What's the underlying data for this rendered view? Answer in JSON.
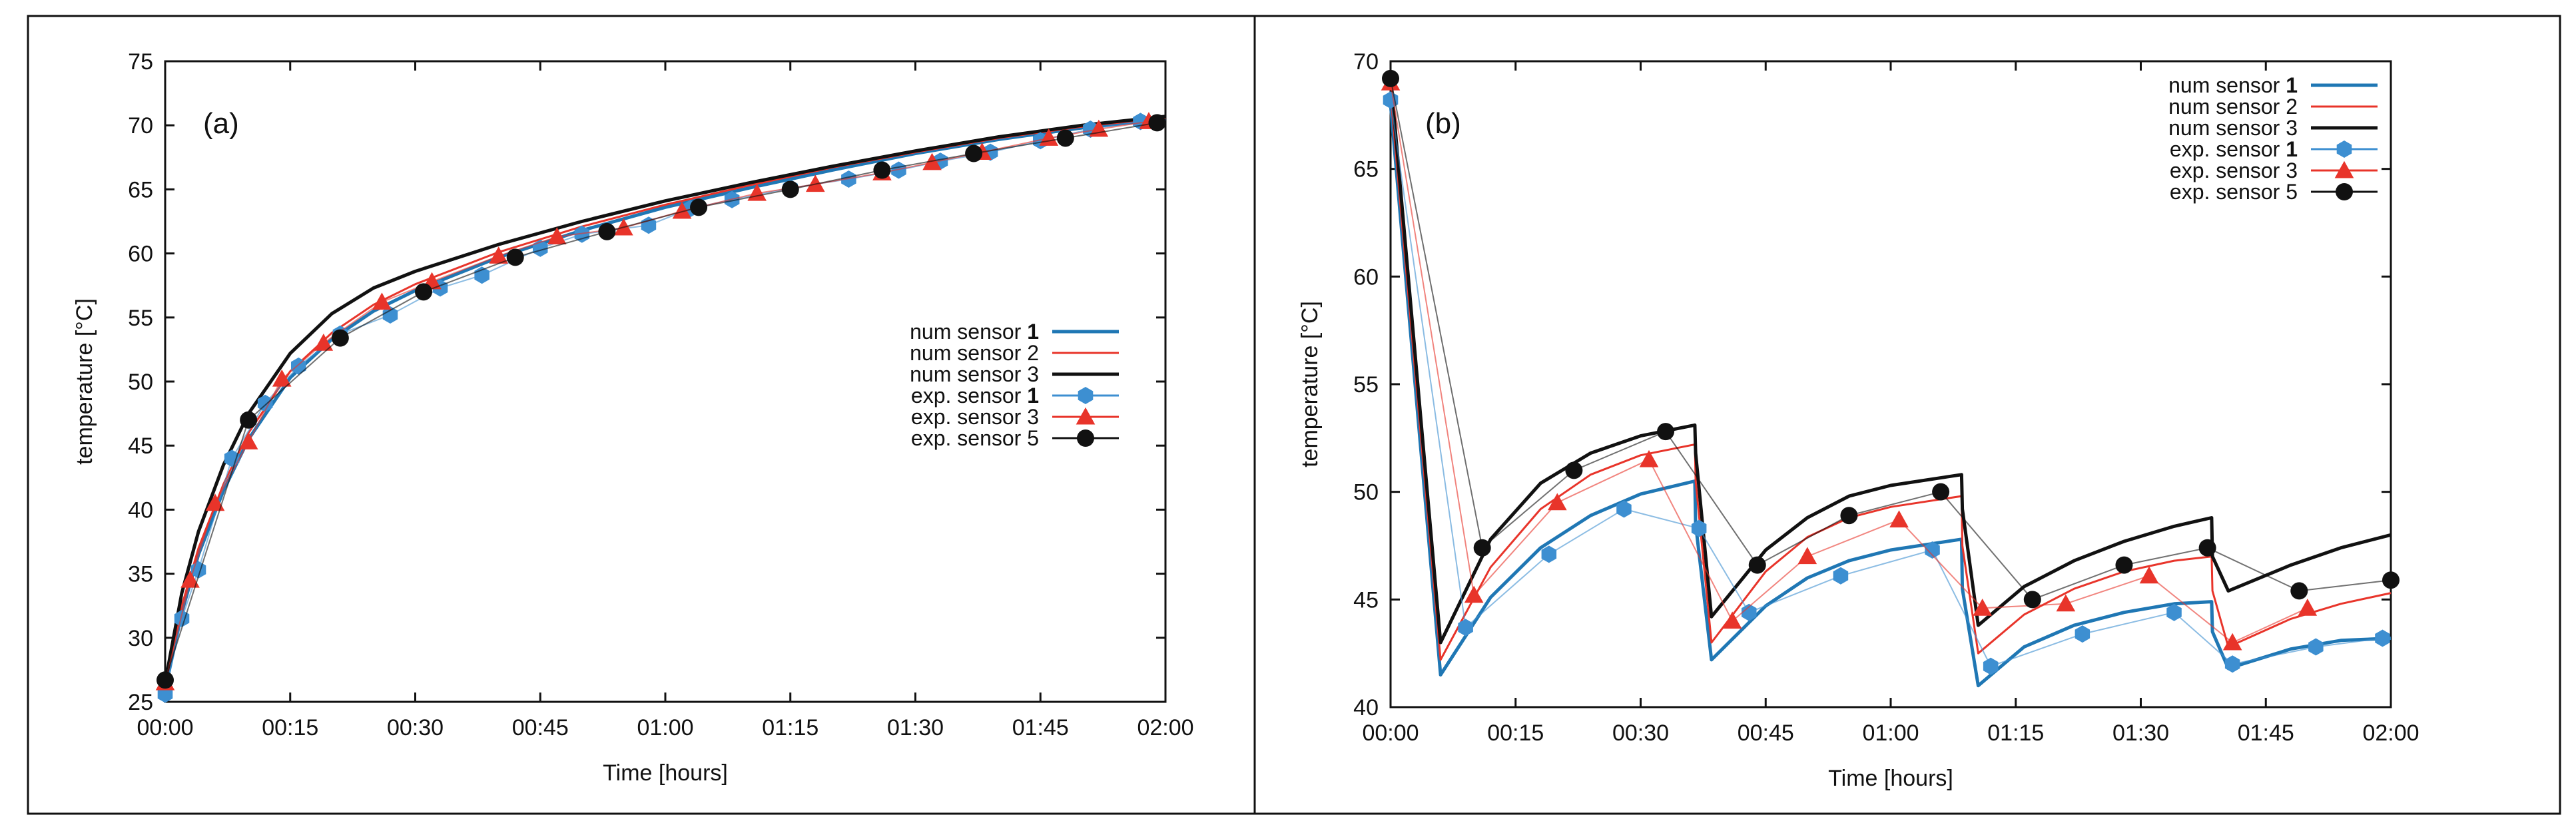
{
  "figure": {
    "panels": [
      "a",
      "b"
    ]
  },
  "chart_data": [
    {
      "type": "line",
      "panel_label": "(a)",
      "title": "",
      "xlabel": "Time [hours]",
      "ylabel": "temperature [°C]",
      "xlim": [
        0,
        120
      ],
      "ylim": [
        25,
        75
      ],
      "xticks": [
        0,
        15,
        30,
        45,
        60,
        75,
        90,
        105,
        120
      ],
      "xtick_labels": [
        "00:00",
        "00:15",
        "00:30",
        "00:45",
        "01:00",
        "01:15",
        "01:30",
        "01:45",
        "02:00"
      ],
      "yticks": [
        25,
        30,
        35,
        40,
        45,
        50,
        55,
        60,
        65,
        70,
        75
      ],
      "ytick_labels": [
        "25",
        "30",
        "35",
        "40",
        "45",
        "50",
        "55",
        "60",
        "65",
        "70",
        "75"
      ],
      "legend": {
        "position": "right"
      },
      "series": [
        {
          "name": "num sensor ",
          "name_bold": "1",
          "kind": "line",
          "color": "#1f77b4",
          "width": 5,
          "x": [
            0,
            2,
            4,
            7,
            10,
            15,
            20,
            25,
            30,
            40,
            50,
            60,
            70,
            80,
            90,
            100,
            110,
            120
          ],
          "y": [
            26,
            32,
            36.5,
            41.5,
            45.5,
            50.3,
            53.3,
            55.5,
            57.1,
            59.7,
            61.8,
            63.6,
            65.1,
            66.5,
            67.8,
            68.9,
            69.8,
            70.5
          ]
        },
        {
          "name": "num sensor 2",
          "name_bold": "",
          "kind": "line",
          "color": "#e8342a",
          "width": 3,
          "x": [
            0,
            2,
            4,
            7,
            10,
            15,
            20,
            25,
            30,
            40,
            50,
            60,
            70,
            80,
            90,
            100,
            110,
            120
          ],
          "y": [
            26.3,
            32.5,
            37,
            42,
            46,
            50.8,
            53.8,
            56,
            57.6,
            60.1,
            62.1,
            63.8,
            65.3,
            66.7,
            67.9,
            69,
            69.9,
            70.6
          ]
        },
        {
          "name": "num sensor 3",
          "name_bold": "",
          "kind": "line",
          "color": "#111111",
          "width": 5,
          "x": [
            0,
            2,
            4,
            7,
            10,
            15,
            20,
            25,
            30,
            40,
            50,
            60,
            70,
            80,
            90,
            100,
            110,
            120
          ],
          "y": [
            26.5,
            33.5,
            38.3,
            43.5,
            47.5,
            52.2,
            55.3,
            57.3,
            58.6,
            60.7,
            62.5,
            64.1,
            65.5,
            66.8,
            68,
            69.1,
            70,
            70.7
          ]
        },
        {
          "name": "exp. sensor ",
          "name_bold": "1",
          "kind": "marker",
          "marker": "hexagon",
          "color": "#3d8fd1",
          "x": [
            0,
            2,
            4,
            8,
            12,
            16,
            21,
            27,
            33,
            38,
            45,
            50,
            58,
            63,
            68,
            75,
            82,
            88,
            93,
            99,
            105,
            111,
            117
          ],
          "y": [
            25.6,
            31.5,
            35.3,
            44,
            48.3,
            51.2,
            53.7,
            55.2,
            57.3,
            58.3,
            60.4,
            61.5,
            62.2,
            63.5,
            64.2,
            65.1,
            65.8,
            66.5,
            67.2,
            67.9,
            68.8,
            69.7,
            70.3
          ]
        },
        {
          "name": "exp. sensor 3",
          "name_bold": "",
          "kind": "marker",
          "marker": "triangle",
          "color": "#e8342a",
          "x": [
            0,
            3,
            6,
            10,
            14,
            19,
            26,
            32,
            40,
            47,
            55,
            62,
            71,
            78,
            86,
            92,
            98,
            106,
            112,
            118
          ],
          "y": [
            26.5,
            34.5,
            40.5,
            45.3,
            50.2,
            53,
            56.2,
            57.8,
            59.8,
            61.3,
            62,
            63.3,
            64.7,
            65.4,
            66.3,
            67.1,
            67.9,
            69,
            69.7,
            70.3
          ]
        },
        {
          "name": "exp. sensor 5",
          "name_bold": "",
          "kind": "marker",
          "marker": "circle",
          "color": "#111111",
          "x": [
            0,
            10,
            21,
            31,
            42,
            53,
            64,
            75,
            86,
            97,
            108,
            119
          ],
          "y": [
            26.7,
            47,
            53.4,
            57,
            59.7,
            61.7,
            63.6,
            65,
            66.5,
            67.8,
            69,
            70.2
          ]
        }
      ]
    },
    {
      "type": "line",
      "panel_label": "(b)",
      "title": "",
      "xlabel": "Time [hours]",
      "ylabel": "temperature [°C]",
      "xlim": [
        0,
        120
      ],
      "ylim": [
        40,
        70
      ],
      "xticks": [
        0,
        15,
        30,
        45,
        60,
        75,
        90,
        105,
        120
      ],
      "xtick_labels": [
        "00:00",
        "00:15",
        "00:30",
        "00:45",
        "01:00",
        "01:15",
        "01:30",
        "01:45",
        "02:00"
      ],
      "yticks": [
        40,
        45,
        50,
        55,
        60,
        65,
        70
      ],
      "ytick_labels": [
        "40",
        "45",
        "50",
        "55",
        "60",
        "65",
        "70"
      ],
      "legend": {
        "position": "top-right"
      },
      "series": [
        {
          "name": "num sensor ",
          "name_bold": "1",
          "kind": "line",
          "color": "#1f77b4",
          "width": 5,
          "x": [
            0,
            6,
            12,
            18,
            24,
            30,
            36.5,
            36.6,
            38.5,
            45,
            50,
            55,
            60,
            68.5,
            68.6,
            70.5,
            76,
            82,
            88,
            94,
            98.5,
            98.6,
            100.5,
            108,
            114,
            120
          ],
          "y": [
            68,
            41.5,
            45.1,
            47.4,
            48.9,
            49.9,
            50.5,
            48.5,
            42.2,
            44.7,
            46,
            46.8,
            47.3,
            47.8,
            45.5,
            41,
            42.8,
            43.8,
            44.4,
            44.8,
            44.9,
            43.5,
            41.8,
            42.7,
            43.1,
            43.2
          ]
        },
        {
          "name": "num sensor 2",
          "name_bold": "",
          "kind": "line",
          "color": "#e8342a",
          "width": 3,
          "x": [
            0,
            6,
            12,
            18,
            24,
            30,
            36.5,
            36.6,
            38.5,
            45,
            50,
            55,
            60,
            68.5,
            68.6,
            70.5,
            76,
            82,
            88,
            94,
            98.5,
            98.6,
            100.5,
            108,
            114,
            120
          ],
          "y": [
            68.5,
            42.2,
            46.5,
            49.2,
            50.8,
            51.7,
            52.2,
            50.5,
            43,
            46.3,
            47.9,
            48.8,
            49.3,
            49.8,
            47.5,
            42.5,
            44.3,
            45.5,
            46.3,
            46.8,
            47,
            45.4,
            42.8,
            44.1,
            44.8,
            45.3
          ]
        },
        {
          "name": "num sensor 3",
          "name_bold": "",
          "kind": "line",
          "color": "#111111",
          "width": 5,
          "x": [
            0,
            6,
            12,
            18,
            24,
            30,
            36.5,
            36.6,
            38.5,
            45,
            50,
            55,
            60,
            68.5,
            68.6,
            70.5,
            76,
            82,
            88,
            94,
            98.5,
            98.6,
            100.5,
            108,
            114,
            120
          ],
          "y": [
            69.3,
            43,
            47.8,
            50.4,
            51.8,
            52.6,
            53.1,
            51.8,
            44.2,
            47.3,
            48.8,
            49.8,
            50.3,
            50.8,
            49.2,
            43.8,
            45.6,
            46.8,
            47.7,
            48.4,
            48.8,
            47,
            45.4,
            46.6,
            47.4,
            48
          ]
        },
        {
          "name": "exp. sensor ",
          "name_bold": "1",
          "kind": "marker",
          "marker": "hexagon",
          "color": "#3d8fd1",
          "x": [
            0,
            9,
            19,
            28,
            37,
            43,
            54,
            65,
            72,
            83,
            94,
            101,
            111,
            119
          ],
          "y": [
            68.2,
            43.7,
            47.1,
            49.2,
            48.3,
            44.4,
            46.1,
            47.3,
            41.9,
            43.4,
            44.4,
            42,
            42.8,
            43.2
          ]
        },
        {
          "name": "exp. sensor 3",
          "name_bold": "",
          "kind": "marker",
          "marker": "triangle",
          "color": "#e8342a",
          "x": [
            0,
            10,
            20,
            31,
            41,
            50,
            61,
            71,
            81,
            91,
            101,
            110
          ],
          "y": [
            69,
            45.2,
            49.5,
            51.5,
            44,
            47,
            48.7,
            44.6,
            44.8,
            46.1,
            43,
            44.6
          ]
        },
        {
          "name": "exp. sensor 5",
          "name_bold": "",
          "kind": "marker",
          "marker": "circle",
          "color": "#111111",
          "x": [
            0,
            11,
            22,
            33,
            44,
            55,
            66,
            77,
            88,
            98,
            109,
            120
          ],
          "y": [
            69.2,
            47.4,
            51,
            52.8,
            46.6,
            48.9,
            50,
            45,
            46.6,
            47.4,
            45.4,
            45.9
          ]
        }
      ]
    }
  ]
}
